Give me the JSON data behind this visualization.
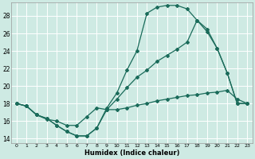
{
  "xlabel": "Humidex (Indice chaleur)",
  "bg_color": "#ceeae3",
  "line_color": "#1a6b5a",
  "grid_color": "#ffffff",
  "xlim": [
    -0.5,
    23.5
  ],
  "ylim": [
    13.5,
    29.5
  ],
  "xticks": [
    0,
    1,
    2,
    3,
    4,
    5,
    6,
    7,
    8,
    9,
    10,
    11,
    12,
    13,
    14,
    15,
    16,
    17,
    18,
    19,
    20,
    21,
    22,
    23
  ],
  "yticks": [
    14,
    16,
    18,
    20,
    22,
    24,
    26,
    28
  ],
  "line1_x": [
    0,
    1,
    2,
    3,
    4,
    5,
    6,
    7,
    8,
    9,
    10,
    11,
    12,
    13,
    14,
    15,
    16,
    17,
    18,
    19,
    20,
    21,
    22,
    23
  ],
  "line1_y": [
    18,
    17.7,
    16.7,
    16.3,
    15.5,
    14.8,
    14.3,
    14.3,
    15.2,
    17.5,
    19.2,
    21.8,
    24.0,
    28.3,
    29.0,
    29.2,
    29.2,
    28.8,
    27.5,
    26.2,
    24.3,
    21.5,
    18.0,
    18.0
  ],
  "line2_x": [
    0,
    1,
    2,
    3,
    4,
    5,
    6,
    7,
    8,
    9,
    10,
    11,
    12,
    13,
    14,
    15,
    16,
    17,
    18,
    19,
    20,
    21,
    22,
    23
  ],
  "line2_y": [
    18,
    17.7,
    16.7,
    16.2,
    16.0,
    15.5,
    15.5,
    16.5,
    17.5,
    17.3,
    17.3,
    17.5,
    17.8,
    18.0,
    18.3,
    18.5,
    18.7,
    18.9,
    19.0,
    19.2,
    19.3,
    19.5,
    18.5,
    18.0
  ],
  "line3_x": [
    0,
    1,
    2,
    3,
    4,
    5,
    6,
    7,
    8,
    9,
    10,
    11,
    12,
    13,
    14,
    15,
    16,
    17,
    18,
    19,
    20,
    21,
    22,
    23
  ],
  "line3_y": [
    18,
    17.7,
    16.7,
    16.3,
    15.5,
    14.8,
    14.3,
    14.3,
    15.2,
    17.3,
    18.5,
    19.8,
    21.0,
    21.8,
    22.8,
    23.5,
    24.2,
    25.0,
    27.5,
    26.5,
    24.3,
    21.5,
    18.0,
    18.0
  ]
}
